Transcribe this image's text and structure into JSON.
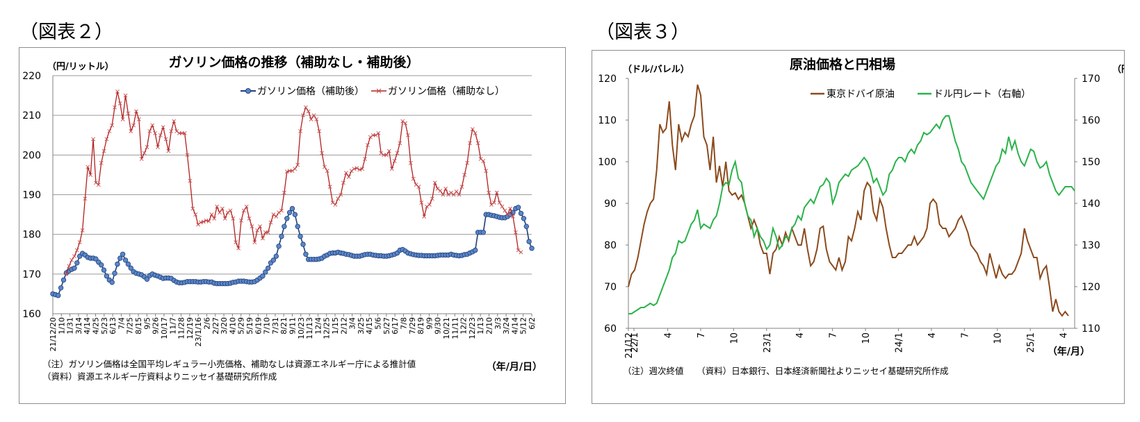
{
  "figure2_label": "（図表２）",
  "figure3_label": "（図表３）",
  "chart_data": [
    {
      "type": "line",
      "title": "ガソリン価格の推移（補助なし・補助後）",
      "ylabel": "（円/リットル）",
      "xlabel": "（年/月/日）",
      "ylim": [
        160,
        220
      ],
      "yticks": [
        160,
        170,
        180,
        190,
        200,
        210,
        220
      ],
      "grid": "horizontal",
      "legend_position": "top-right",
      "x_tick_labels": [
        "21/12/20",
        "1/10",
        "1/31",
        "3/14",
        "4/14",
        "4/25",
        "5/23",
        "6/13",
        "7/4",
        "7/25",
        "8/15",
        "9/5",
        "9/26",
        "10/17",
        "11/7",
        "11/28",
        "12/19",
        "23/1/16",
        "2/6",
        "2/27",
        "3/20",
        "4/10",
        "5/29",
        "5/19",
        "6/19",
        "7/10",
        "7/31",
        "8/21",
        "9/11",
        "10/23",
        "11/13",
        "12/4",
        "12/25",
        "1/15",
        "2/12",
        "3/4",
        "3/25",
        "4/15",
        "5/6",
        "5/27",
        "6/17",
        "7/8",
        "7/29",
        "8/19",
        "9/9",
        "9/30",
        "10/21",
        "11/11",
        "12/2",
        "12/23",
        "1/13",
        "2/10",
        "3/3",
        "3/24",
        "4/14",
        "5/12",
        "6/2"
      ],
      "series": [
        {
          "name": "ガソリン価格（補助後）",
          "color": "#1f3f7a",
          "marker": "circle",
          "values": [
            165,
            164.8,
            164.6,
            166.5,
            168.5,
            170.3,
            170.8,
            171.2,
            171.5,
            172.8,
            174.5,
            175.2,
            174.8,
            174.2,
            174,
            174,
            173.8,
            173,
            172.3,
            171,
            169.5,
            168.5,
            167.9,
            170.2,
            172.5,
            174,
            175,
            173.5,
            172.5,
            171.5,
            170.6,
            170.2,
            170,
            169.8,
            169.3,
            168.7,
            169.6,
            170,
            169.7,
            169.5,
            169.2,
            168.9,
            169,
            169,
            168.9,
            168.4,
            168,
            167.8,
            167.8,
            167.9,
            168.1,
            168.1,
            168.1,
            168.1,
            168,
            168,
            168.1,
            168.1,
            168,
            168,
            167.7,
            167.6,
            167.6,
            167.6,
            167.6,
            167.6,
            167.7,
            167.9,
            168,
            168.2,
            168.2,
            168.2,
            168.1,
            168,
            168,
            168.1,
            168.5,
            169,
            169.5,
            170.5,
            171.5,
            172.8,
            173.5,
            174.5,
            177,
            179.5,
            182,
            184,
            185.5,
            186.5,
            185,
            182,
            179.5,
            177.5,
            175,
            173.7,
            173.7,
            173.7,
            173.7,
            173.8,
            174,
            174.5,
            174.8,
            175.2,
            175.3,
            175.3,
            175.5,
            175.3,
            175.2,
            175,
            174.9,
            174.7,
            174.5,
            174.5,
            174.5,
            174.7,
            174.9,
            175,
            175,
            174.8,
            174.7,
            174.6,
            174.6,
            174.5,
            174.5,
            174.6,
            174.8,
            175,
            175.3,
            176,
            176.2,
            175.8,
            175.3,
            175.1,
            174.9,
            174.8,
            174.7,
            174.7,
            174.6,
            174.6,
            174.6,
            174.6,
            174.6,
            174.7,
            174.8,
            174.8,
            174.8,
            174.8,
            175,
            174.8,
            174.7,
            174.6,
            174.7,
            174.9,
            175,
            175.3,
            175.6,
            176,
            180.5,
            180.5,
            180.5,
            185,
            185,
            184.8,
            184.7,
            184.5,
            184.3,
            184.2,
            184.2,
            184.5,
            185,
            185.5,
            186.5,
            186.8,
            185.3,
            184,
            182,
            178.2,
            176.5
          ]
        },
        {
          "name": "ガソリン価格（補助なし）",
          "color": "#b22020",
          "marker": "x",
          "values": [
            null,
            null,
            null,
            null,
            null,
            170,
            172,
            173.5,
            174.5,
            176,
            178,
            181,
            189,
            197,
            195,
            204,
            193,
            192.5,
            198,
            201,
            204,
            206,
            207.5,
            212,
            216,
            213,
            209,
            215,
            210.5,
            206,
            207.5,
            211,
            209,
            199,
            200.5,
            202,
            206,
            207.5,
            205.5,
            202,
            205,
            207,
            204,
            201,
            206,
            208.5,
            206,
            205.5,
            205.5,
            205.5,
            200,
            193.5,
            186.5,
            185,
            182.5,
            183,
            183.2,
            183.5,
            183.3,
            185,
            184,
            187,
            185.5,
            186.5,
            184,
            185.5,
            186,
            184,
            178,
            176.5,
            183.5,
            186,
            187,
            184,
            182,
            178,
            181,
            182,
            179,
            180.5,
            180.5,
            183,
            185,
            184.5,
            185.5,
            186,
            190.5,
            195.8,
            196,
            196,
            196.5,
            197.5,
            206,
            210,
            212,
            211,
            209,
            210,
            209,
            206,
            200.5,
            197,
            196,
            192,
            188,
            187.5,
            189,
            190,
            193,
            195.5,
            194.5,
            196,
            196.5,
            196.7,
            196.3,
            196.5,
            199,
            202.5,
            204.5,
            205,
            205,
            205.5,
            200.5,
            200,
            200,
            201,
            196.5,
            198.5,
            200.5,
            203,
            208.5,
            208,
            205,
            198,
            194,
            192.5,
            192,
            188,
            184.5,
            187,
            187.5,
            189,
            193,
            191.5,
            191,
            190,
            191.5,
            190,
            190.5,
            190,
            190.8,
            190,
            192,
            195,
            198,
            203,
            206.5,
            205.5,
            203,
            199,
            198.5,
            196,
            190.5,
            187.5,
            188,
            190.5,
            188,
            187,
            186,
            185,
            186.5,
            184.5,
            180.5,
            176,
            175.5
          ]
        }
      ],
      "note1": "（注）ガソリン価格は全国平均レギュラー小売価格、補助なしは資源エネルギー庁による推計値",
      "note2": "（資料）資源エネルギー庁資料よりニッセイ基礎研究所作成"
    },
    {
      "type": "line",
      "title": "原油価格と円相場",
      "ylabel": "（ドル/バレル）",
      "ylabel_right": "（円/ドル）",
      "xlabel": "（年/月）",
      "ylim": [
        60,
        120
      ],
      "ylim_right": [
        110,
        170
      ],
      "yticks": [
        60,
        70,
        80,
        90,
        100,
        110,
        120
      ],
      "yticks_right": [
        110,
        120,
        130,
        140,
        150,
        160,
        170
      ],
      "legend_position": "top",
      "x_tick_labels": [
        "21/12",
        "22/1",
        "4",
        "7",
        "10",
        "23/1",
        "4",
        "7",
        "10",
        "24/1",
        "4",
        "7",
        "10",
        "25/1",
        "4"
      ],
      "series": [
        {
          "name": "東京ドバイ原油",
          "color": "#8b4a1c",
          "axis": "left",
          "values": [
            70,
            73,
            74,
            77,
            81,
            85,
            88,
            90,
            91,
            98,
            109,
            107,
            108,
            114.5,
            104,
            98,
            109,
            105,
            107,
            106,
            109,
            111,
            118.5,
            116,
            106,
            104,
            98,
            106,
            95,
            99,
            94,
            100,
            93,
            92,
            92.5,
            91,
            92,
            90,
            87,
            84,
            86,
            84,
            80,
            78,
            78,
            73,
            78,
            79,
            82,
            80,
            83,
            81,
            84,
            82,
            80,
            80,
            84,
            79,
            75,
            76,
            79,
            84,
            84.5,
            79,
            76,
            75,
            74,
            77,
            74,
            76,
            82,
            81,
            84,
            88,
            86,
            93,
            95,
            94,
            88,
            86,
            91,
            89,
            84,
            80,
            77,
            77,
            78,
            78,
            79,
            80,
            80,
            82,
            80,
            81,
            82,
            84,
            90,
            91,
            90,
            85,
            84,
            84,
            82,
            83,
            84,
            86,
            87,
            85,
            83,
            80,
            79,
            78,
            76,
            75,
            73,
            78,
            75,
            72,
            75,
            73,
            72,
            73,
            73,
            74,
            76,
            78,
            84,
            81,
            79,
            77,
            77,
            72,
            74,
            75,
            70,
            64,
            67,
            64,
            63,
            64,
            63
          ]
        },
        {
          "name": "ドル円レート（右軸）",
          "color": "#2ab34a",
          "axis": "right",
          "values": [
            113.5,
            113.5,
            114,
            114.5,
            115,
            115,
            115.5,
            116,
            115.5,
            116,
            118,
            120,
            122,
            124,
            127,
            128,
            131,
            130.5,
            131,
            133,
            135,
            136,
            138.5,
            134,
            135,
            134.5,
            134,
            136,
            137,
            140,
            144,
            145,
            144.5,
            148,
            150,
            146,
            145,
            140,
            137,
            136,
            132,
            134,
            132,
            131,
            129,
            130,
            134,
            132,
            129,
            130,
            132,
            131.5,
            134,
            135,
            137,
            136,
            139,
            140,
            141,
            140,
            142,
            144,
            144.5,
            146,
            145,
            140,
            142,
            145,
            146,
            147,
            146.5,
            148,
            148.5,
            149,
            150,
            151,
            150,
            148,
            145,
            146,
            144,
            142,
            143,
            147,
            148,
            150,
            151,
            151,
            150,
            152,
            153,
            152,
            154,
            155,
            157,
            156.5,
            157,
            158,
            159,
            158,
            160,
            161,
            161,
            158,
            155,
            153,
            150,
            149,
            147,
            145,
            144,
            143,
            142,
            141,
            143,
            145,
            147,
            149,
            150,
            153,
            152,
            156,
            153,
            155,
            152,
            150,
            149,
            151,
            153,
            152.5,
            150,
            148.5,
            149,
            150,
            147,
            145,
            143,
            142,
            143,
            144,
            144,
            144,
            143
          ]
        }
      ],
      "note": "（注）週次終値　　（資料）日本銀行、日本経済新聞社よりニッセイ基礎研究所作成"
    }
  ]
}
